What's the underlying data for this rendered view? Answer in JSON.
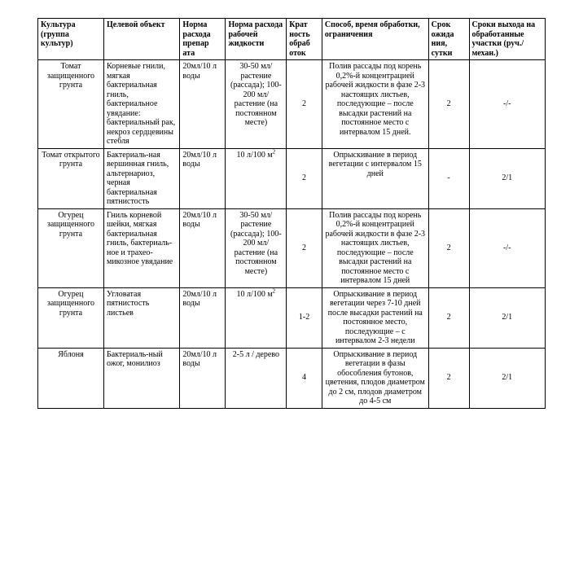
{
  "columns": {
    "widths_pct": [
      13,
      15,
      9,
      12,
      7,
      21,
      8,
      15
    ],
    "headers": [
      "Культура (группа культур)",
      "Целевой объект",
      "Норма расхода препар ата",
      "Норма расхода рабочей жидкости",
      "Крат ность обраб оток",
      "Способ, время обработки, ограничения",
      "Срок ожида ния, сутки",
      "Сроки выхода на обработанные участки (руч./механ.)"
    ]
  },
  "rows": [
    {
      "culture": "Томат защищенного грунта",
      "target": "Корневые гнили, мягкая бактериальная гниль, бактериальное увядание: бактериальный рак, некроз сердцевины стебля",
      "dose_prep": "20мл/10 л воды",
      "dose_liquid": "30-50 мл/растение (рассада); 100-200 мл/растение (на постоянном месте)",
      "mult": "2",
      "method": "Полив рассады под корень 0,2%-й концентрацией рабочей жидкости в фазе 2-3 настоящих листьев, последующие – после высадки растений на постоянное место с интервалом 15 дней.",
      "wait": "2",
      "reentry": "-/-"
    },
    {
      "culture": "Томат открытого грунта",
      "target": "Бактериаль-ная вершинная гниль, альтернариоз, черная бактериальная пятнистость",
      "dose_prep": "20мл/10 л воды",
      "dose_liquid_html": "10 л/100 м<span class=\"sup\">2</span>",
      "mult": "2",
      "method": "Опрыскивание в период вегетации с интервалом 15 дней",
      "wait": "-",
      "reentry": "2/1"
    },
    {
      "culture": "Огурец защищенного грунта",
      "target": "Гниль корневой шейки, мягкая бактериальная гниль, бактериаль-ное и трахео-микозное увядание",
      "dose_prep": "20мл/10 л воды",
      "dose_liquid": "30-50 мл/растение (рассада); 100-200 мл/растение (на постоянном месте)",
      "mult": "2",
      "method": "Полив рассады под корень 0,2%-й концентрацией рабочей жидкости в фазе 2-3 настоящих листьев, последующие – после высадки растений на постоянное место с интервалом 15 дней",
      "wait": "2",
      "reentry": "-/-"
    },
    {
      "culture": "Огурец защищенного грунта",
      "target": "Угловатая пятнистость листьев",
      "dose_prep": "20мл/10 л воды",
      "dose_liquid_html": "10 л/100 м<span class=\"sup\">2</span>",
      "mult": "1-2",
      "method": "Опрыскивание в период вегетации через 7-10 дней после высадки растений на постоянное место, последующие – с интервалом 2-3 недели",
      "wait": "2",
      "reentry": "2/1"
    },
    {
      "culture": "Яблоня",
      "target": "Бактериаль-ный ожог, монилиоз",
      "dose_prep": "20мл/10 л воды",
      "dose_liquid": "2-5 л / дерево",
      "mult": "4",
      "method": "Опрыскивание в период вегетации в фазы обособления бутонов, цветения, плодов диаметром до 2 см, плодов диаметром до 4-5 см",
      "wait": "2",
      "reentry": "2/1"
    }
  ]
}
